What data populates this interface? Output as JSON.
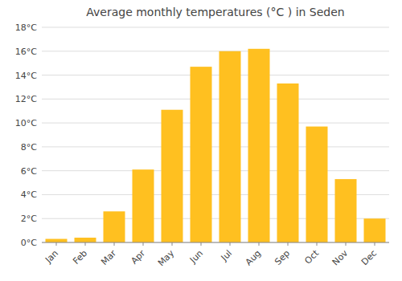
{
  "chart_data": {
    "type": "bar",
    "title": "Average monthly temperatures (°C ) in Seden",
    "categories": [
      "Jan",
      "Feb",
      "Mar",
      "Apr",
      "May",
      "Jun",
      "Jul",
      "Aug",
      "Sep",
      "Oct",
      "Nov",
      "Dec"
    ],
    "values": [
      0.3,
      0.4,
      2.6,
      6.1,
      11.1,
      14.7,
      16.0,
      16.2,
      13.3,
      9.7,
      5.3,
      2.0
    ],
    "color": "#FFC020",
    "ylim": [
      0,
      18
    ],
    "yticks": [
      {
        "value": 0,
        "label": "0°C"
      },
      {
        "value": 2,
        "label": "2°C"
      },
      {
        "value": 4,
        "label": "4°C"
      },
      {
        "value": 6,
        "label": "6°C"
      },
      {
        "value": 8,
        "label": "8°C"
      },
      {
        "value": 10,
        "label": "10°C"
      },
      {
        "value": 12,
        "label": "12°C"
      },
      {
        "value": 14,
        "label": "14°C"
      },
      {
        "value": 16,
        "label": "16°C"
      },
      {
        "value": 18,
        "label": "18°C"
      }
    ],
    "grid": true
  }
}
